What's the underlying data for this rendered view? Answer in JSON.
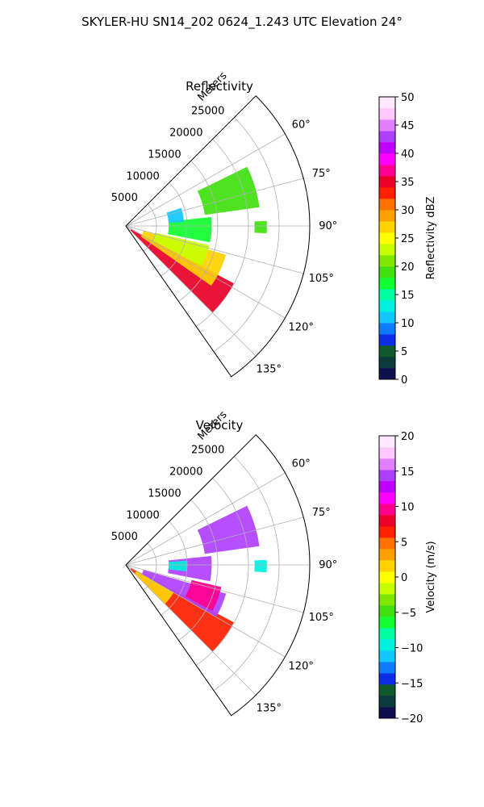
{
  "figure": {
    "suptitle": "SKYLER-HU  SN14_202  0624_1.243 UTC Elevation 24°"
  },
  "chart_data": [
    {
      "type": "heatmap",
      "projection": "polar-sector",
      "title": "Reflectivity",
      "radial_label": "Meters",
      "radial_ticks": [
        "5000",
        "10000",
        "15000",
        "20000",
        "25000"
      ],
      "radial_values": [
        5000,
        10000,
        15000,
        20000,
        25000
      ],
      "rlim": [
        0,
        30000
      ],
      "angle_ticks": [
        "60°",
        "75°",
        "90°",
        "105°",
        "120°",
        "135°"
      ],
      "angle_values": [
        60,
        75,
        90,
        105,
        120,
        135
      ],
      "theta_lim_deg": [
        45,
        145
      ],
      "grid": true,
      "colorbar": {
        "label": "Reflectivity dBZ",
        "vmin": 0,
        "vmax": 50,
        "ticks": [
          "0",
          "5",
          "10",
          "15",
          "20",
          "25",
          "30",
          "35",
          "40",
          "45",
          "50"
        ],
        "tick_values": [
          0,
          5,
          10,
          15,
          20,
          25,
          30,
          35,
          40,
          45,
          50
        ],
        "colors": [
          "#101050",
          "#0d3a3a",
          "#0f5a2a",
          "#0b2ee6",
          "#0f7cff",
          "#10c8ff",
          "#00f0e0",
          "#00ffa0",
          "#10ff30",
          "#40e010",
          "#80e800",
          "#c8ff00",
          "#ffff00",
          "#ffd200",
          "#ffa000",
          "#ff7000",
          "#ff2000",
          "#e80028",
          "#ff0090",
          "#ff00ff",
          "#c000ff",
          "#b040ff",
          "#e080ff",
          "#ffc8ff",
          "#ffe8ff"
        ]
      },
      "echo_regions": [
        {
          "from_deg": 118,
          "to_deg": 135,
          "r_min": 1000,
          "r_max": 20000,
          "value": 35
        },
        {
          "from_deg": 106,
          "to_deg": 125,
          "r_min": 3000,
          "r_max": 17000,
          "value": 27
        },
        {
          "from_deg": 103,
          "to_deg": 118,
          "r_min": 5000,
          "r_max": 14000,
          "value": 22
        },
        {
          "from_deg": 84,
          "to_deg": 101,
          "r_min": 7000,
          "r_max": 14000,
          "value": 17
        },
        {
          "from_deg": 64,
          "to_deg": 82,
          "r_min": 13000,
          "r_max": 22000,
          "value": 18
        },
        {
          "from_deg": 88,
          "to_deg": 93,
          "r_min": 21000,
          "r_max": 23000,
          "value": 18
        },
        {
          "from_deg": 72,
          "to_deg": 86,
          "r_min": 7000,
          "r_max": 9500,
          "value": 10
        }
      ]
    },
    {
      "type": "heatmap",
      "projection": "polar-sector",
      "title": "Velocity",
      "radial_label": "Meters",
      "radial_ticks": [
        "5000",
        "10000",
        "15000",
        "20000",
        "25000"
      ],
      "radial_values": [
        5000,
        10000,
        15000,
        20000,
        25000
      ],
      "rlim": [
        0,
        30000
      ],
      "angle_ticks": [
        "60°",
        "75°",
        "90°",
        "105°",
        "120°",
        "135°"
      ],
      "angle_values": [
        60,
        75,
        90,
        105,
        120,
        135
      ],
      "theta_lim_deg": [
        45,
        145
      ],
      "grid": true,
      "colorbar": {
        "label": "Velocity (m/s)",
        "vmin": -20,
        "vmax": 20,
        "ticks": [
          "−20",
          "−15",
          "−10",
          "−5",
          "0",
          "5",
          "10",
          "15",
          "20"
        ],
        "tick_values": [
          -20,
          -15,
          -10,
          -5,
          0,
          5,
          10,
          15,
          20
        ],
        "colors": [
          "#101050",
          "#0d3a3a",
          "#0f5a2a",
          "#0b2ee6",
          "#0f7cff",
          "#10c8ff",
          "#00f0e0",
          "#00ffa0",
          "#10ff30",
          "#40e010",
          "#80e800",
          "#c8ff00",
          "#ffff00",
          "#ffd200",
          "#ffa000",
          "#ff7000",
          "#ff2000",
          "#e80028",
          "#ff0090",
          "#ff00ff",
          "#c000ff",
          "#b040ff",
          "#e080ff",
          "#ffc8ff",
          "#ffe8ff"
        ]
      },
      "echo_regions": [
        {
          "from_deg": 118,
          "to_deg": 135,
          "r_min": 1000,
          "r_max": 20000,
          "value": 6
        },
        {
          "from_deg": 120,
          "to_deg": 135,
          "r_min": 2000,
          "r_max": 9000,
          "value": 1
        },
        {
          "from_deg": 106,
          "to_deg": 120,
          "r_min": 3000,
          "r_max": 17000,
          "value": 14
        },
        {
          "from_deg": 103,
          "to_deg": 118,
          "r_min": 11000,
          "r_max": 16000,
          "value": 9
        },
        {
          "from_deg": 84,
          "to_deg": 101,
          "r_min": 7000,
          "r_max": 14000,
          "value": 15
        },
        {
          "from_deg": 64,
          "to_deg": 82,
          "r_min": 13000,
          "r_max": 22000,
          "value": 14
        },
        {
          "from_deg": 86,
          "to_deg": 96,
          "r_min": 7000,
          "r_max": 10000,
          "value": -10
        },
        {
          "from_deg": 88,
          "to_deg": 93,
          "r_min": 21000,
          "r_max": 23000,
          "value": -10
        }
      ]
    }
  ]
}
